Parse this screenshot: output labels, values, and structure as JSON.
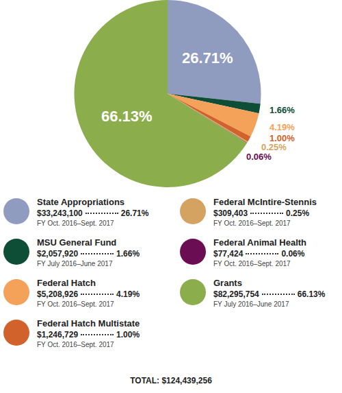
{
  "chart_data": {
    "type": "pie",
    "categories": [
      "State Appropriations",
      "MSU General Fund",
      "Federal Hatch",
      "Federal Hatch Multistate",
      "Federal McIntire-Stennis",
      "Federal Animal Health",
      "Grants"
    ],
    "values": [
      26.71,
      1.66,
      4.19,
      1.0,
      0.25,
      0.06,
      66.13
    ],
    "value_labels": [
      "26.71%",
      "1.66%",
      "4.19%",
      "1.00%",
      "0.25%",
      "0.06%",
      "66.13%"
    ],
    "colors": [
      "#8f9bbf",
      "#0e4d36",
      "#f4a259",
      "#d2622b",
      "#d4a362",
      "#6b0d52",
      "#8cad4b"
    ],
    "data_labels": true,
    "amounts": [
      "$33,243,100",
      "$2,057,920",
      "$5,208,926",
      "$1,246,729",
      "$309,403",
      "$77,424",
      "$82,295,754"
    ],
    "fiscal_years": [
      "FY Oct. 2016–Sept. 2017",
      "FY July 2016–June 2017",
      "FY Oct. 2016–Sept. 2017",
      "FY Oct. 2016–Sept. 2017",
      "FY Oct. 2016–Sept. 2017",
      "FY Oct. 2016–Sept. 2017",
      "FY July 2016–June 2017"
    ],
    "total": "TOTAL: $124,439,256"
  }
}
